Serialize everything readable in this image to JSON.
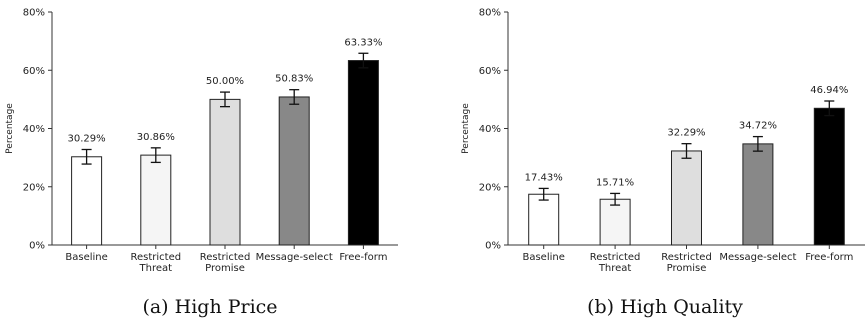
{
  "chart_data": [
    {
      "type": "bar",
      "caption": "(a) High Price",
      "ylabel": "Percentage",
      "ylim": [
        0,
        80
      ],
      "yticks": [
        "0%",
        "20%",
        "40%",
        "60%",
        "80%"
      ],
      "categories": [
        [
          "Baseline"
        ],
        [
          "Restricted",
          "Threat"
        ],
        [
          "Restricted",
          "Promise"
        ],
        [
          "Message-select"
        ],
        [
          "Free-form"
        ]
      ],
      "values": [
        30.29,
        30.86,
        50.0,
        50.83,
        63.33
      ],
      "value_labels": [
        "30.29%",
        "30.86%",
        "50.00%",
        "50.83%",
        "63.33%"
      ],
      "errors": [
        2.5,
        2.5,
        2.5,
        2.5,
        2.5
      ],
      "colors": [
        "#ffffff",
        "#f5f5f5",
        "#dedede",
        "#888888",
        "#000000"
      ]
    },
    {
      "type": "bar",
      "caption": "(b) High Quality",
      "ylabel": "Percentage",
      "ylim": [
        0,
        80
      ],
      "yticks": [
        "0%",
        "20%",
        "40%",
        "60%",
        "80%"
      ],
      "categories": [
        [
          "Baseline"
        ],
        [
          "Restricted",
          "Threat"
        ],
        [
          "Restricted",
          "Promise"
        ],
        [
          "Message-select"
        ],
        [
          "Free-form"
        ]
      ],
      "values": [
        17.43,
        15.71,
        32.29,
        34.72,
        46.94
      ],
      "value_labels": [
        "17.43%",
        "15.71%",
        "32.29%",
        "34.72%",
        "46.94%"
      ],
      "errors": [
        2.0,
        2.0,
        2.5,
        2.5,
        2.5
      ],
      "colors": [
        "#ffffff",
        "#f5f5f5",
        "#dedede",
        "#888888",
        "#000000"
      ]
    }
  ]
}
